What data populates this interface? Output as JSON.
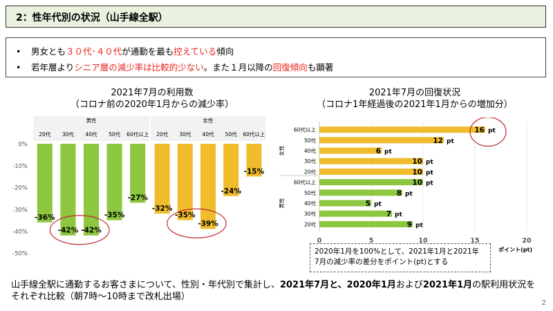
{
  "header": {
    "title": "2：性年代別の状況（山手線全駅）"
  },
  "bullets": [
    {
      "parts": [
        {
          "t": "男女とも",
          "red": false
        },
        {
          "t": "３０代･４０代",
          "red": true
        },
        {
          "t": "が通勤を最も",
          "red": false
        },
        {
          "t": "控えている",
          "red": true
        },
        {
          "t": "傾向",
          "red": false
        }
      ]
    },
    {
      "parts": [
        {
          "t": "若年層より",
          "red": false
        },
        {
          "t": "シニア層の減少率は比較的少ない",
          "red": true
        },
        {
          "t": "。また１月以降の",
          "red": false
        },
        {
          "t": "回復傾向",
          "red": true
        },
        {
          "t": "も顕著",
          "red": false
        }
      ]
    }
  ],
  "left_title": {
    "line1": "2021年7月の利用数",
    "line2": "（コロナ前の2020年1月からの減少率）"
  },
  "right_title": {
    "line1": "2021年7月の回復状況",
    "line2": "（コロナ1年経過後の2021年1月からの増加分）"
  },
  "chart_data": [
    {
      "type": "bar",
      "orientation": "vertical",
      "title": "2021年7月の利用数",
      "subtitle": "（コロナ前の2020年1月からの減少率）",
      "groups": [
        "男性",
        "女性"
      ],
      "categories": [
        "20代",
        "30代",
        "40代",
        "50代",
        "60代以上"
      ],
      "series": [
        {
          "name": "男性",
          "color": "#8dc63f",
          "values": [
            -36,
            -42,
            -42,
            -35,
            -27
          ]
        },
        {
          "name": "女性",
          "color": "#f0bc2c",
          "values": [
            -32,
            -35,
            -39,
            -24,
            -15
          ]
        }
      ],
      "ylim": [
        -50,
        0
      ],
      "yticks": [
        "0%",
        "-10%",
        "-20%",
        "-30%",
        "-40%",
        "-50%"
      ],
      "tick_values": [
        0,
        -10,
        -20,
        -30,
        -40,
        -50
      ],
      "unit": "%",
      "highlighted": [
        "男性 30代",
        "男性 40代",
        "女性 30代",
        "女性 40代"
      ]
    },
    {
      "type": "bar",
      "orientation": "horizontal",
      "title": "2021年7月の回復状況",
      "subtitle": "（コロナ1年経過後の2021年1月からの増加分）",
      "groups": [
        {
          "name": "女性",
          "color": "#f0bc2c",
          "categories": [
            "60代以上",
            "50代",
            "40代",
            "30代",
            "20代"
          ],
          "values": [
            16,
            12,
            6,
            10,
            10
          ]
        },
        {
          "name": "男性",
          "color": "#8dc63f",
          "categories": [
            "60代以上",
            "50代",
            "40代",
            "30代",
            "20代"
          ],
          "values": [
            10,
            8,
            5,
            7,
            9
          ]
        }
      ],
      "xlim": [
        0,
        20
      ],
      "xticks": [
        "0",
        "5",
        "10",
        "15",
        "20"
      ],
      "tick_values": [
        0,
        5,
        10,
        15,
        20
      ],
      "xlabel": "ポイント(pt)",
      "unit": "pt",
      "highlighted": [
        "女性 60代以上"
      ]
    }
  ],
  "legend_note": {
    "line1": "2020年1月を100%として、2021年1月と2021年",
    "line2": "7月の減少率の差分をポイント(pt)とする"
  },
  "footer": {
    "p1": "山手線全駅に通勤するお客さまについて、性別・年代別で集計し、",
    "b1": "2021年7月と、2020年1月",
    "p2": "および",
    "b2": "2021年1月",
    "p3": "の駅利用状況をそれぞれ比較（朝7時～10時まで改札出場）"
  },
  "page_number": "2"
}
